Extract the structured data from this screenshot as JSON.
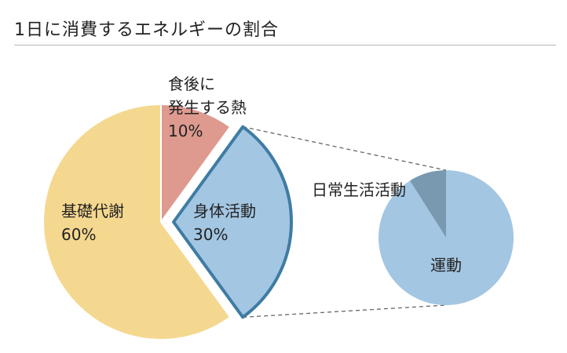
{
  "title": "1日に消費するエネルギーの割合",
  "colors": {
    "basal": "#f5d88f",
    "thermogenesis": "#de9a8f",
    "activity": "#a3c6e2",
    "activity_border": "#3f7ca3",
    "daily_life": "#7899b0",
    "exercise": "#a3c6e2",
    "connector": "#666666",
    "rule": "#b7b7b7"
  },
  "chart_data": [
    {
      "type": "pie",
      "title": "1日に消費するエネルギーの割合",
      "slices": [
        {
          "label_lines": [
            "食後に",
            "発生する熱"
          ],
          "value": 10,
          "value_label": "10%",
          "exploded": false
        },
        {
          "label_lines": [
            "身体活動"
          ],
          "value": 30,
          "value_label": "30%",
          "exploded": true
        },
        {
          "label_lines": [
            "基礎代謝"
          ],
          "value": 60,
          "value_label": "60%",
          "exploded": false
        }
      ]
    },
    {
      "type": "pie",
      "breakdown_of": "身体活動",
      "slices": [
        {
          "label": "日常生活活動",
          "value": 9
        },
        {
          "label": "運動",
          "value": 91
        }
      ]
    }
  ]
}
